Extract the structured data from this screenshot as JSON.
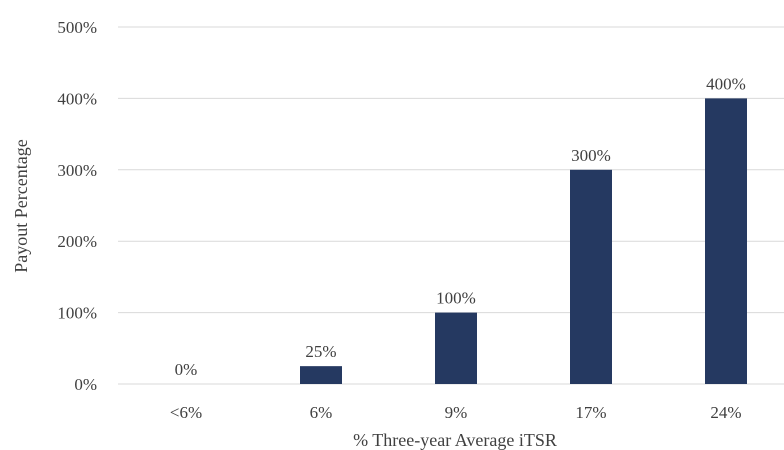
{
  "chart_data": {
    "type": "bar",
    "title": "",
    "xlabel": "% Three-year Average iTSR",
    "ylabel": "Payout Percentage",
    "categories": [
      "<6%",
      "6%",
      "9%",
      "17%",
      "24%"
    ],
    "values": [
      0,
      25,
      100,
      300,
      400
    ],
    "data_labels": [
      "0%",
      "25%",
      "100%",
      "300%",
      "400%"
    ],
    "ylim": [
      0,
      500
    ],
    "yticks": [
      0,
      100,
      200,
      300,
      400,
      500
    ],
    "ytick_labels": [
      "0%",
      "100%",
      "200%",
      "300%",
      "400%",
      "500%"
    ],
    "grid": true,
    "legend": "none",
    "bar_color": "#253961"
  }
}
